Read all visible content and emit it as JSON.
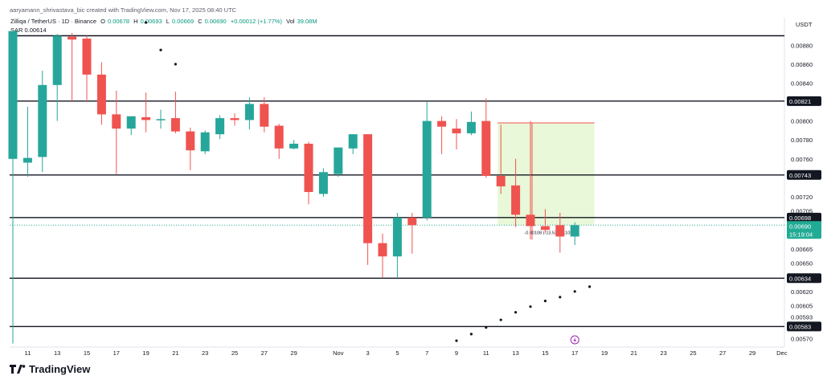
{
  "header": {
    "attribution": "aaryamann_shrivastava_bic created with TradingView.com, Nov 17, 2025 08:40 UTC"
  },
  "legend": {
    "symbol": "Zilliqa / TetherUS · 1D · Binance",
    "open_label": "O",
    "open": "0.00678",
    "high_label": "H",
    "high": "0.00693",
    "low_label": "L",
    "low": "0.00669",
    "close_label": "C",
    "close": "0.00690",
    "change": "+0.00012 (+1.77%)",
    "vol_label": "Vol",
    "vol": "39.08M",
    "indicator": "SAR 0.00614"
  },
  "footer": {
    "brand": "TradingView"
  },
  "colors": {
    "up": "#26a69a",
    "down": "#ef5350",
    "level_line": "#131722",
    "label_bg": "#131722",
    "current_price_bg": "#22ab94",
    "measure_fill": "#e6f7d4",
    "measure_border": "#ef5350",
    "sar_dot": "#131722",
    "alert_icon": "#9c27b0"
  },
  "chart_data": {
    "type": "candlestick",
    "currency_label": "USDT",
    "ylim": [
      0.00563,
      0.00904
    ],
    "y_ticks": [
      "0.00880",
      "0.00860",
      "0.00840",
      "0.00800",
      "0.00780",
      "0.00760",
      "0.00720",
      "0.00705",
      "0.00665",
      "0.00650",
      "0.00620",
      "0.00605",
      "0.00593",
      "0.00570"
    ],
    "x_ticks": [
      {
        "label": "11",
        "i": 1
      },
      {
        "label": "13",
        "i": 3
      },
      {
        "label": "15",
        "i": 5
      },
      {
        "label": "17",
        "i": 7
      },
      {
        "label": "19",
        "i": 9
      },
      {
        "label": "21",
        "i": 11
      },
      {
        "label": "23",
        "i": 13
      },
      {
        "label": "25",
        "i": 15
      },
      {
        "label": "27",
        "i": 17
      },
      {
        "label": "29",
        "i": 19
      },
      {
        "label": "Nov",
        "i": 22
      },
      {
        "label": "3",
        "i": 24
      },
      {
        "label": "5",
        "i": 26
      },
      {
        "label": "7",
        "i": 28
      },
      {
        "label": "9",
        "i": 30
      },
      {
        "label": "11",
        "i": 32
      },
      {
        "label": "13",
        "i": 34
      },
      {
        "label": "15",
        "i": 36
      },
      {
        "label": "17",
        "i": 38
      },
      {
        "label": "19",
        "i": 40
      },
      {
        "label": "21",
        "i": 42
      },
      {
        "label": "23",
        "i": 44
      },
      {
        "label": "25",
        "i": 46
      },
      {
        "label": "27",
        "i": 48
      },
      {
        "label": "29",
        "i": 50
      },
      {
        "label": "Dec",
        "i": 52
      }
    ],
    "levels": [
      {
        "value": 0.0089,
        "label": ""
      },
      {
        "value": 0.00821,
        "label": "0.00821"
      },
      {
        "value": 0.00743,
        "label": "0.00743"
      },
      {
        "value": 0.00698,
        "label": "0.00698"
      },
      {
        "value": 0.00634,
        "label": "0.00634"
      },
      {
        "value": 0.00583,
        "label": "0.00583"
      }
    ],
    "current_price": {
      "value": 0.0069,
      "label": "0.00690",
      "countdown": "15:19:04"
    },
    "candles": [
      {
        "o": 0.0076,
        "h": 0.00895,
        "l": 0.00565,
        "c": 0.00895
      },
      {
        "o": 0.00756,
        "h": 0.00815,
        "l": 0.00741,
        "c": 0.00761
      },
      {
        "o": 0.00762,
        "h": 0.00853,
        "l": 0.00746,
        "c": 0.00838
      },
      {
        "o": 0.00838,
        "h": 0.00892,
        "l": 0.008,
        "c": 0.0089
      },
      {
        "o": 0.00889,
        "h": 0.00893,
        "l": 0.0082,
        "c": 0.00886
      },
      {
        "o": 0.00887,
        "h": 0.0089,
        "l": 0.0082,
        "c": 0.00849
      },
      {
        "o": 0.00849,
        "h": 0.00862,
        "l": 0.00796,
        "c": 0.00807
      },
      {
        "o": 0.00807,
        "h": 0.00832,
        "l": 0.00744,
        "c": 0.00792
      },
      {
        "o": 0.00792,
        "h": 0.00803,
        "l": 0.00785,
        "c": 0.00805
      },
      {
        "o": 0.00804,
        "h": 0.0083,
        "l": 0.00788,
        "c": 0.00801
      },
      {
        "o": 0.00801,
        "h": 0.00812,
        "l": 0.00792,
        "c": 0.00802
      },
      {
        "o": 0.00803,
        "h": 0.00831,
        "l": 0.00787,
        "c": 0.00789
      },
      {
        "o": 0.00789,
        "h": 0.00793,
        "l": 0.00748,
        "c": 0.00769
      },
      {
        "o": 0.00768,
        "h": 0.0079,
        "l": 0.00765,
        "c": 0.00788
      },
      {
        "o": 0.00786,
        "h": 0.00806,
        "l": 0.00781,
        "c": 0.00803
      },
      {
        "o": 0.00803,
        "h": 0.00808,
        "l": 0.00795,
        "c": 0.00801
      },
      {
        "o": 0.00801,
        "h": 0.00825,
        "l": 0.00791,
        "c": 0.00818
      },
      {
        "o": 0.00818,
        "h": 0.00825,
        "l": 0.00788,
        "c": 0.00794
      },
      {
        "o": 0.00795,
        "h": 0.00797,
        "l": 0.0076,
        "c": 0.00771
      },
      {
        "o": 0.00771,
        "h": 0.0078,
        "l": 0.0077,
        "c": 0.00776
      },
      {
        "o": 0.00776,
        "h": 0.00778,
        "l": 0.00712,
        "c": 0.00725
      },
      {
        "o": 0.00723,
        "h": 0.0075,
        "l": 0.0072,
        "c": 0.00746
      },
      {
        "o": 0.00744,
        "h": 0.00772,
        "l": 0.00741,
        "c": 0.00772
      },
      {
        "o": 0.00771,
        "h": 0.00786,
        "l": 0.00765,
        "c": 0.00786
      },
      {
        "o": 0.00786,
        "h": 0.00786,
        "l": 0.00648,
        "c": 0.00671
      },
      {
        "o": 0.00671,
        "h": 0.00681,
        "l": 0.00634,
        "c": 0.00657
      },
      {
        "o": 0.00657,
        "h": 0.00703,
        "l": 0.00634,
        "c": 0.00698
      },
      {
        "o": 0.00698,
        "h": 0.00703,
        "l": 0.0066,
        "c": 0.0069
      },
      {
        "o": 0.00698,
        "h": 0.0082,
        "l": 0.00695,
        "c": 0.008
      },
      {
        "o": 0.008,
        "h": 0.00805,
        "l": 0.00765,
        "c": 0.00794
      },
      {
        "o": 0.00792,
        "h": 0.00802,
        "l": 0.0077,
        "c": 0.00787
      },
      {
        "o": 0.00787,
        "h": 0.0081,
        "l": 0.00785,
        "c": 0.00799
      },
      {
        "o": 0.008,
        "h": 0.00824,
        "l": 0.0074,
        "c": 0.00742
      },
      {
        "o": 0.00742,
        "h": 0.00796,
        "l": 0.00723,
        "c": 0.00731
      },
      {
        "o": 0.00732,
        "h": 0.0076,
        "l": 0.00688,
        "c": 0.00701
      },
      {
        "o": 0.00701,
        "h": 0.008,
        "l": 0.00675,
        "c": 0.00689
      },
      {
        "o": 0.00689,
        "h": 0.00707,
        "l": 0.00682,
        "c": 0.00685
      },
      {
        "o": 0.0069,
        "h": 0.00703,
        "l": 0.00661,
        "c": 0.00678
      },
      {
        "o": 0.00678,
        "h": 0.00693,
        "l": 0.00669,
        "c": 0.0069
      }
    ],
    "sar": [
      {
        "i": 9,
        "v": 0.00904
      },
      {
        "i": 10,
        "v": 0.00875
      },
      {
        "i": 11,
        "v": 0.0086
      },
      {
        "i": 30,
        "v": 0.00568
      },
      {
        "i": 31,
        "v": 0.00575
      },
      {
        "i": 32,
        "v": 0.00582
      },
      {
        "i": 33,
        "v": 0.0059
      },
      {
        "i": 34,
        "v": 0.00598
      },
      {
        "i": 35,
        "v": 0.00604
      },
      {
        "i": 36,
        "v": 0.0061
      },
      {
        "i": 37,
        "v": 0.00614
      },
      {
        "i": 38,
        "v": 0.0062
      },
      {
        "i": 39,
        "v": 0.00625
      }
    ],
    "measure": {
      "i_start": 33,
      "i_end": 39,
      "v_top": 0.00798,
      "v_bottom": 0.0069,
      "label": "-0.00108 (-13.53%) -108"
    }
  }
}
